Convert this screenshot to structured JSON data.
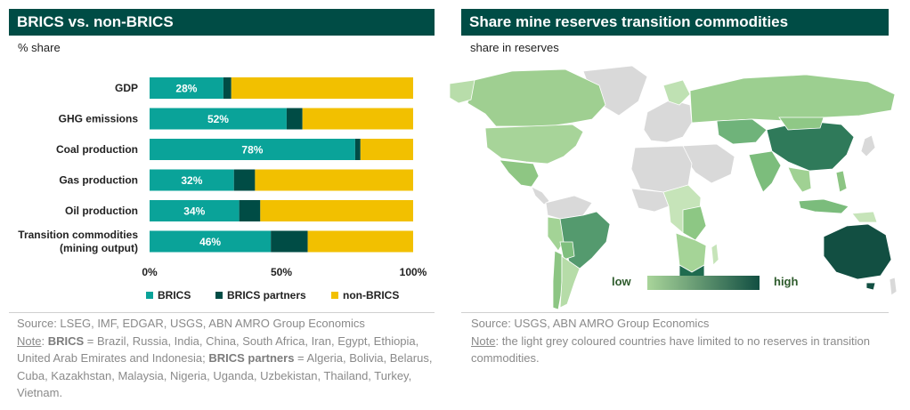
{
  "left": {
    "title": "BRICS vs. non-BRICS",
    "subtitle": "% share",
    "source_line": "Source: LSEG, IMF, EDGAR, USGS, ABN AMRO Group Economics",
    "note_label": "Note",
    "note_parts": [
      {
        "text": ": ",
        "bold": false
      },
      {
        "text": "BRICS",
        "bold": true
      },
      {
        "text": " = Brazil, Russia, India, China, South Africa, Iran, Egypt, Ethiopia, United Arab Emirates and Indonesia; ",
        "bold": false
      },
      {
        "text": "BRICS partners",
        "bold": true
      },
      {
        "text": " = Algeria, Bolivia, Belarus, Cuba, Kazakhstan, Malaysia, Nigeria, Uganda, Uzbekistan, Thailand, Turkey, Vietnam.",
        "bold": false
      }
    ]
  },
  "right": {
    "title": "Share mine reserves transition commodities",
    "subtitle": "share in reserves",
    "legend_low": "low",
    "legend_high": "high",
    "source_line": "Source: USGS, ABN AMRO Group Economics",
    "note_label": "Note",
    "note_text": ": the light grey coloured countries have limited to no reserves in transition commodities."
  },
  "colors": {
    "brics": "#0aa399",
    "partners": "#004c45",
    "non_brics": "#f2c000",
    "title_bg": "#004c45",
    "map_low": "#a9d59a",
    "map_high": "#124f42",
    "map_none": "#d9d9d9"
  },
  "chart_data": {
    "type": "bar",
    "orientation": "horizontal",
    "stacked": true,
    "title": "BRICS vs. non-BRICS",
    "ylabel": "% share",
    "categories": [
      [
        "GDP"
      ],
      [
        "GHG emissions"
      ],
      [
        "Coal production"
      ],
      [
        "Gas production"
      ],
      [
        "Oil production"
      ],
      [
        "Transition commodities",
        "(mining output)"
      ]
    ],
    "series": [
      {
        "name": "BRICS",
        "values": [
          28,
          52,
          78,
          32,
          34,
          46
        ],
        "labels": [
          "28%",
          "52%",
          "78%",
          "32%",
          "34%",
          "46%"
        ]
      },
      {
        "name": "BRICS partners",
        "values": [
          3,
          6,
          2,
          8,
          8,
          14
        ]
      },
      {
        "name": "non-BRICS",
        "values": [
          69,
          42,
          20,
          60,
          58,
          40
        ]
      }
    ],
    "xlim": [
      0,
      100
    ],
    "ticks": [
      0,
      50,
      100
    ],
    "tick_labels": [
      "0%",
      "50%",
      "100%"
    ],
    "legend": [
      "BRICS",
      "BRICS partners",
      "non-BRICS"
    ],
    "legend_position": "bottom"
  }
}
